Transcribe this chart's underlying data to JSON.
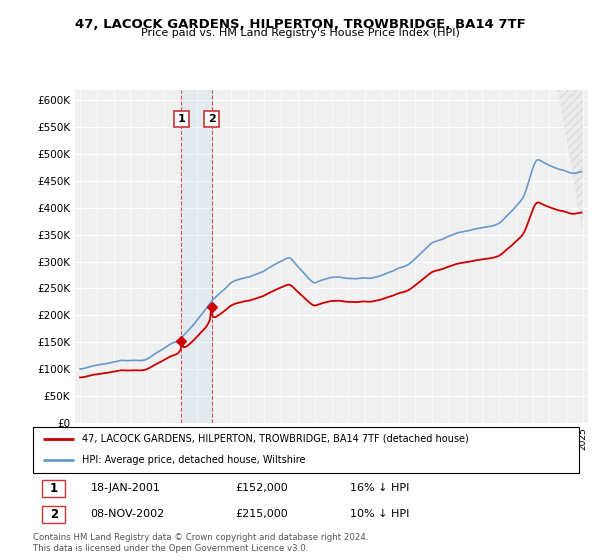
{
  "title": "47, LACOCK GARDENS, HILPERTON, TROWBRIDGE, BA14 7TF",
  "subtitle": "Price paid vs. HM Land Registry's House Price Index (HPI)",
  "sale1_date": "18-JAN-2001",
  "sale1_price": 152000,
  "sale1_year": 2001.05,
  "sale1_label": "16% ↓ HPI",
  "sale2_date": "08-NOV-2002",
  "sale2_price": 215000,
  "sale2_year": 2002.85,
  "sale2_label": "10% ↓ HPI",
  "legend_line1": "47, LACOCK GARDENS, HILPERTON, TROWBRIDGE, BA14 7TF (detached house)",
  "legend_line2": "HPI: Average price, detached house, Wiltshire",
  "footnote": "Contains HM Land Registry data © Crown copyright and database right 2024.\nThis data is licensed under the Open Government Licence v3.0.",
  "line_color_red": "#cc0000",
  "line_color_blue": "#6699cc",
  "ylim_min": 0,
  "ylim_max": 620000,
  "xmin": 1995,
  "xmax": 2025,
  "background_color": "#ffffff",
  "plot_bg_color": "#f0f0f0"
}
